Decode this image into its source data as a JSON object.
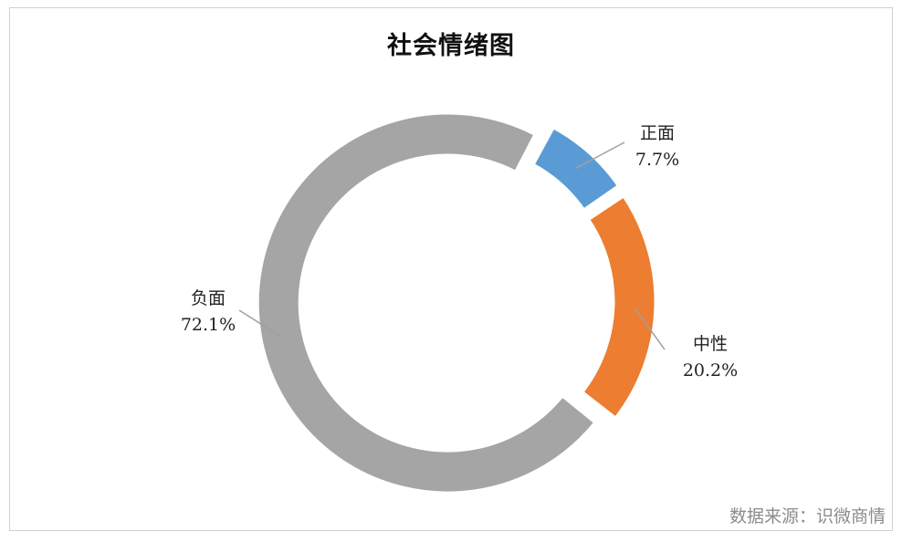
{
  "chart_data": {
    "type": "pie",
    "title": "社会情绪图",
    "donut": true,
    "categories": [
      "正面",
      "中性",
      "负面"
    ],
    "values": [
      7.7,
      20.2,
      72.1
    ],
    "value_labels": [
      "7.7%",
      "20.2%",
      "72.1%"
    ],
    "colors": [
      "#5b9bd5",
      "#ed7d31",
      "#a5a5a5"
    ],
    "legend": "none"
  },
  "footer": {
    "source": "数据来源：识微商情"
  }
}
